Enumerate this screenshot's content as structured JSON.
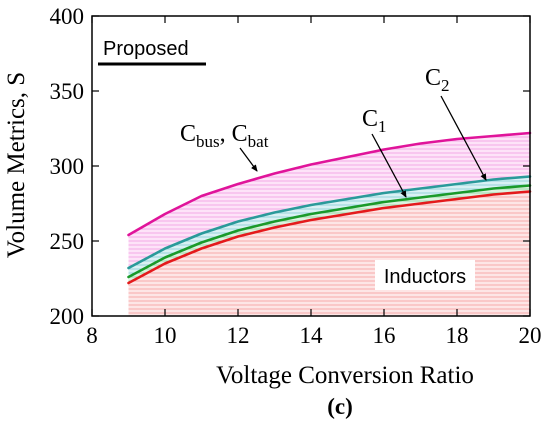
{
  "caption": "(c)",
  "legend": {
    "label": "Proposed"
  },
  "labels": {
    "inductors": "Inductors",
    "c1_base": "C",
    "c1_sub": "1",
    "c2_base": "C",
    "c2_sub": "2",
    "cbus_base": "C",
    "cbus_sub": "bus",
    "cbat_sep": ", C",
    "cbat_sub": "bat"
  },
  "colors": {
    "inductors": "#e41a1c",
    "c1_line": "#1a9a2a",
    "c2_line": "#2a9a9a",
    "cbus_line": "#e0149a",
    "inductors_fill": "#fbd0d0",
    "c1_fill": "#c9ecd0",
    "c2_fill": "#c6e8ec",
    "cbus_fill": "#f8c8ef"
  },
  "chart_data": {
    "type": "area",
    "xlabel": "Voltage Conversion Ratio",
    "ylabel": "Volume Metrics, S",
    "xlim": [
      8,
      20
    ],
    "ylim": [
      200,
      400
    ],
    "xticks": [
      8,
      10,
      12,
      14,
      16,
      18,
      20
    ],
    "yticks": [
      200,
      250,
      300,
      350,
      400
    ],
    "x": [
      9,
      10,
      11,
      12,
      13,
      14,
      15,
      16,
      17,
      18,
      19,
      20
    ],
    "series": [
      {
        "name": "Inductors",
        "values": [
          222,
          235,
          245,
          253,
          259,
          264,
          268,
          272,
          275,
          278,
          281,
          283
        ]
      },
      {
        "name": "C1",
        "values": [
          226,
          239,
          249,
          257,
          263,
          268,
          272,
          276,
          279,
          282,
          285,
          287
        ]
      },
      {
        "name": "C2",
        "values": [
          232,
          245,
          255,
          263,
          269,
          274,
          278,
          282,
          285,
          288,
          291,
          293
        ]
      },
      {
        "name": "Cbus, Cbat",
        "values": [
          254,
          268,
          280,
          288,
          295,
          301,
          306,
          311,
          315,
          318,
          320,
          322
        ]
      }
    ]
  }
}
